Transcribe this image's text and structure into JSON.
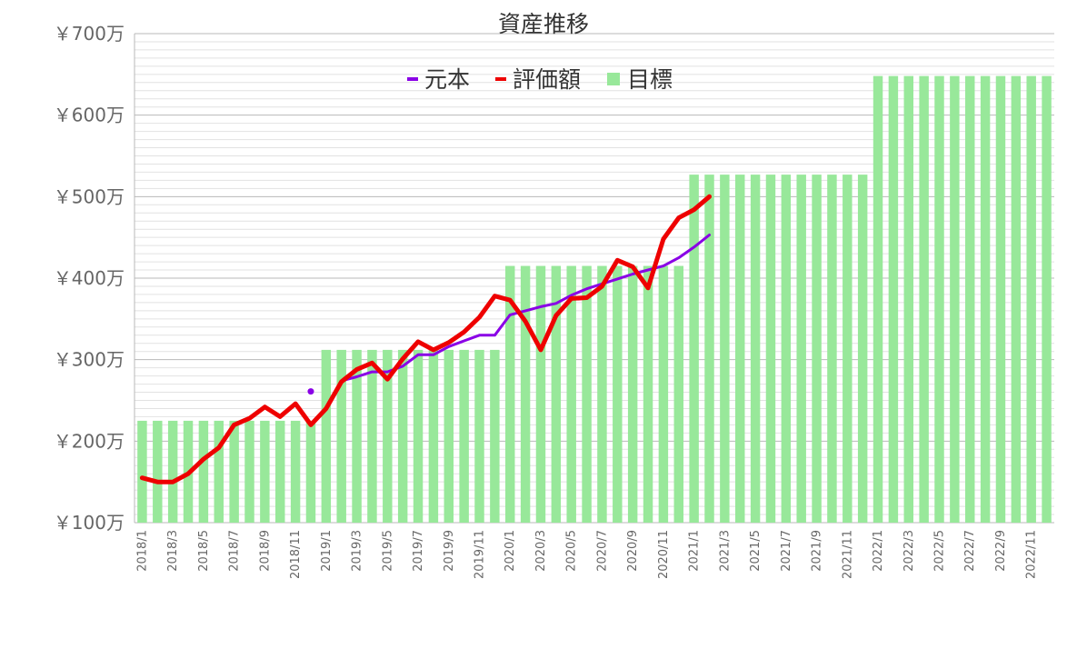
{
  "chart_data": {
    "type": "bar+line",
    "title": "資産推移",
    "ylim": [
      100,
      700
    ],
    "y_ticks": [
      100,
      200,
      300,
      400,
      500,
      600,
      700
    ],
    "y_tick_labels": [
      "￥100万",
      "￥200万",
      "￥300万",
      "￥400万",
      "￥500万",
      "￥600万",
      "￥700万"
    ],
    "y_minor_step": 10,
    "grid": true,
    "legend": "top-center",
    "months": [
      "2018/1",
      "2018/2",
      "2018/3",
      "2018/4",
      "2018/5",
      "2018/6",
      "2018/7",
      "2018/8",
      "2018/9",
      "2018/10",
      "2018/11",
      "2018/12",
      "2019/1",
      "2019/2",
      "2019/3",
      "2019/4",
      "2019/5",
      "2019/6",
      "2019/7",
      "2019/8",
      "2019/9",
      "2019/10",
      "2019/11",
      "2019/12",
      "2020/1",
      "2020/2",
      "2020/3",
      "2020/4",
      "2020/5",
      "2020/6",
      "2020/7",
      "2020/8",
      "2020/9",
      "2020/10",
      "2020/11",
      "2020/12",
      "2021/1",
      "2021/2",
      "2021/3",
      "2021/4",
      "2021/5",
      "2021/6",
      "2021/7",
      "2021/8",
      "2021/9",
      "2021/10",
      "2021/11",
      "2021/12",
      "2022/1",
      "2022/2",
      "2022/3",
      "2022/4",
      "2022/5",
      "2022/6",
      "2022/7",
      "2022/8",
      "2022/9",
      "2022/10",
      "2022/11",
      "2022/12"
    ],
    "x_tick_labels": [
      "2018/1",
      "2018/3",
      "2018/5",
      "2018/7",
      "2018/9",
      "2018/11",
      "2019/1",
      "2019/3",
      "2019/5",
      "2019/7",
      "2019/9",
      "2019/11",
      "2020/1",
      "2020/3",
      "2020/5",
      "2020/7",
      "2020/9",
      "2020/11",
      "2021/1",
      "2021/3",
      "2021/5",
      "2021/7",
      "2021/9",
      "2021/11",
      "2022/1",
      "2022/3",
      "2022/5",
      "2022/7",
      "2022/9",
      "2022/11"
    ],
    "series": [
      {
        "name": "目標",
        "type": "bar",
        "color": "#98e89a",
        "values": [
          225,
          225,
          225,
          225,
          225,
          225,
          225,
          225,
          225,
          225,
          225,
          225,
          312,
          312,
          312,
          312,
          312,
          312,
          312,
          312,
          312,
          312,
          312,
          312,
          415,
          415,
          415,
          415,
          415,
          415,
          415,
          415,
          415,
          415,
          415,
          415,
          527,
          527,
          527,
          527,
          527,
          527,
          527,
          527,
          527,
          527,
          527,
          527,
          648,
          648,
          648,
          648,
          648,
          648,
          648,
          648,
          648,
          648,
          648,
          648
        ]
      },
      {
        "name": "元本",
        "type": "line",
        "color": "#8a00e6",
        "values": [
          null,
          null,
          null,
          null,
          null,
          null,
          null,
          null,
          null,
          null,
          null,
          261,
          null,
          274,
          279,
          285,
          285,
          292,
          306,
          306,
          316,
          323,
          330,
          330,
          355,
          360,
          365,
          369,
          379,
          387,
          393,
          399,
          405,
          410,
          415,
          425,
          438,
          453,
          null,
          null,
          null,
          null,
          null,
          null,
          null,
          null,
          null,
          null,
          null,
          null,
          null,
          null,
          null,
          null,
          null,
          null,
          null,
          null,
          null,
          null
        ]
      },
      {
        "name": "評価額",
        "type": "line",
        "color": "#ee0000",
        "values": [
          155,
          150,
          150,
          160,
          178,
          192,
          220,
          228,
          242,
          230,
          246,
          220,
          240,
          273,
          288,
          296,
          276,
          301,
          322,
          312,
          321,
          334,
          352,
          378,
          373,
          347,
          312,
          354,
          375,
          376,
          390,
          422,
          414,
          388,
          448,
          474,
          484,
          500,
          null,
          null,
          null,
          null,
          null,
          null,
          null,
          null,
          null,
          null,
          null,
          null,
          null,
          null,
          null,
          null,
          null,
          null,
          null,
          null,
          null,
          null
        ]
      }
    ]
  }
}
